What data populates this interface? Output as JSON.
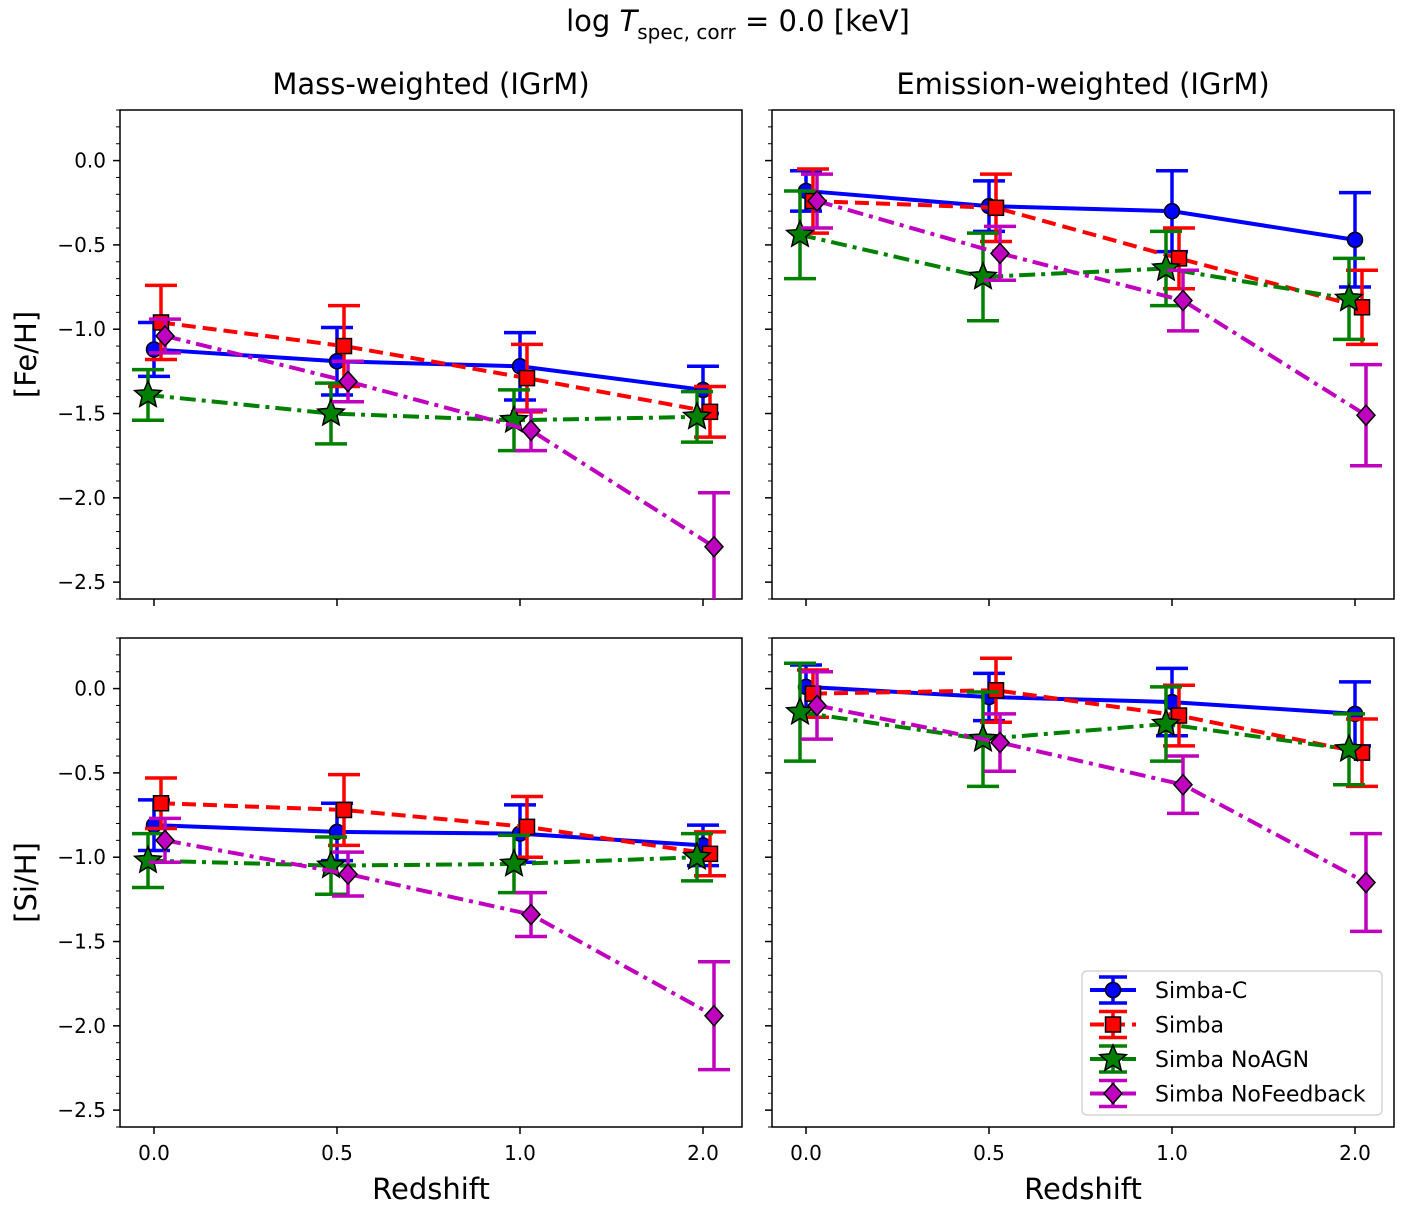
{
  "figure": {
    "suptitle_prefix": "log ",
    "suptitle_symbol": "T",
    "suptitle_subscript": "spec, corr",
    "suptitle_suffix": " = 0.0 [keV]"
  },
  "legend": {
    "placement": "lower-right of bottom-right panel",
    "entries": [
      {
        "label": "Simba-C"
      },
      {
        "label": "Simba"
      },
      {
        "label": "Simba NoAGN"
      },
      {
        "label": "Simba NoFeedback"
      }
    ]
  },
  "styles": [
    {
      "color": "#0000ff",
      "marker": "circle",
      "dash": "solid"
    },
    {
      "color": "#ff0000",
      "marker": "square",
      "dash": "dashed"
    },
    {
      "color": "#008000",
      "marker": "star",
      "dash": "dashdot"
    },
    {
      "color": "#bf00bf",
      "marker": "diamond",
      "dash": "dashdot"
    }
  ],
  "chart_data": [
    {
      "type": "line",
      "title": "Mass-weighted (IGrM)",
      "ylabel": "[Fe/H]",
      "xlabel": "",
      "categories": [
        "0.0",
        "0.5",
        "1.0",
        "2.0"
      ],
      "ylim": [
        -2.6,
        0.3
      ],
      "yticks": [
        "0.0",
        "−0.5",
        "−1.0",
        "−1.5",
        "−2.0",
        "−2.5"
      ],
      "series": [
        {
          "name": "Simba-C",
          "values": [
            -1.12,
            -1.19,
            -1.22,
            -1.36
          ],
          "err": [
            0.16,
            0.2,
            0.2,
            0.14
          ]
        },
        {
          "name": "Simba",
          "values": [
            -0.96,
            -1.1,
            -1.29,
            -1.49
          ],
          "err": [
            0.22,
            0.24,
            0.2,
            0.15
          ]
        },
        {
          "name": "Simba NoAGN",
          "values": [
            -1.39,
            -1.5,
            -1.54,
            -1.52
          ],
          "err": [
            0.15,
            0.18,
            0.18,
            0.15
          ]
        },
        {
          "name": "Simba NoFeedback",
          "values": [
            -1.04,
            -1.31,
            -1.6,
            -2.29
          ],
          "err": [
            0.1,
            0.12,
            0.12,
            0.32
          ]
        }
      ]
    },
    {
      "type": "line",
      "title": "Emission-weighted (IGrM)",
      "ylabel": "",
      "xlabel": "",
      "categories": [
        "0.0",
        "0.5",
        "1.0",
        "2.0"
      ],
      "ylim": [
        -2.6,
        0.3
      ],
      "series": [
        {
          "name": "Simba-C",
          "values": [
            -0.18,
            -0.27,
            -0.3,
            -0.47
          ],
          "err": [
            0.12,
            0.15,
            0.24,
            0.28
          ]
        },
        {
          "name": "Simba",
          "values": [
            -0.24,
            -0.28,
            -0.58,
            -0.87
          ],
          "err": [
            0.19,
            0.2,
            0.18,
            0.22
          ]
        },
        {
          "name": "Simba NoAGN",
          "values": [
            -0.44,
            -0.69,
            -0.64,
            -0.82
          ],
          "err": [
            0.26,
            0.26,
            0.22,
            0.24
          ]
        },
        {
          "name": "Simba NoFeedback",
          "values": [
            -0.24,
            -0.55,
            -0.83,
            -1.51
          ],
          "err": [
            0.16,
            0.16,
            0.18,
            0.3
          ]
        }
      ]
    },
    {
      "type": "line",
      "title": "",
      "ylabel": "[Si/H]",
      "xlabel": "Redshift",
      "categories": [
        "0.0",
        "0.5",
        "1.0",
        "2.0"
      ],
      "ylim": [
        -2.6,
        0.3
      ],
      "yticks": [
        "0.0",
        "−0.5",
        "−1.0",
        "−1.5",
        "−2.0",
        "−2.5"
      ],
      "series": [
        {
          "name": "Simba-C",
          "values": [
            -0.81,
            -0.85,
            -0.86,
            -0.93
          ],
          "err": [
            0.15,
            0.17,
            0.17,
            0.12
          ]
        },
        {
          "name": "Simba",
          "values": [
            -0.68,
            -0.72,
            -0.82,
            -0.98
          ],
          "err": [
            0.15,
            0.21,
            0.18,
            0.13
          ]
        },
        {
          "name": "Simba NoAGN",
          "values": [
            -1.02,
            -1.05,
            -1.04,
            -1.0
          ],
          "err": [
            0.16,
            0.17,
            0.17,
            0.14
          ]
        },
        {
          "name": "Simba NoFeedback",
          "values": [
            -0.9,
            -1.1,
            -1.34,
            -1.94
          ],
          "err": [
            0.13,
            0.13,
            0.13,
            0.32
          ]
        }
      ]
    },
    {
      "type": "line",
      "title": "",
      "ylabel": "",
      "xlabel": "Redshift",
      "categories": [
        "0.0",
        "0.5",
        "1.0",
        "2.0"
      ],
      "ylim": [
        -2.6,
        0.3
      ],
      "series": [
        {
          "name": "Simba-C",
          "values": [
            0.01,
            -0.05,
            -0.08,
            -0.15
          ],
          "err": [
            0.13,
            0.14,
            0.2,
            0.19
          ]
        },
        {
          "name": "Simba",
          "values": [
            -0.03,
            -0.01,
            -0.16,
            -0.38
          ],
          "err": [
            0.14,
            0.19,
            0.18,
            0.2
          ]
        },
        {
          "name": "Simba NoAGN",
          "values": [
            -0.14,
            -0.3,
            -0.21,
            -0.36
          ],
          "err": [
            0.29,
            0.28,
            0.22,
            0.21
          ]
        },
        {
          "name": "Simba NoFeedback",
          "values": [
            -0.1,
            -0.32,
            -0.57,
            -1.15
          ],
          "err": [
            0.2,
            0.17,
            0.17,
            0.29
          ]
        }
      ]
    }
  ]
}
